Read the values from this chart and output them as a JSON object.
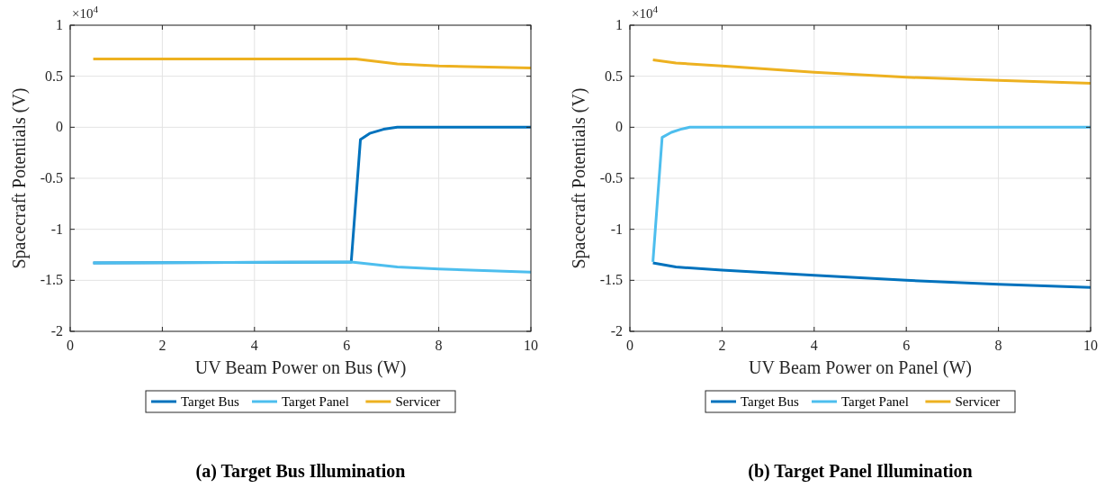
{
  "chart_data": [
    {
      "type": "line",
      "title": "(a) Target Bus Illumination",
      "xlabel": "UV Beam Power on Bus (W)",
      "ylabel": "Spacecraft Potentials (V)",
      "annotations": [
        "×10$^{4}$"
      ],
      "xlim": [
        0,
        10
      ],
      "xticks": [
        0,
        2,
        4,
        6,
        8,
        10
      ],
      "ylim": [
        -2,
        1
      ],
      "yticks": [
        -2,
        -1.5,
        -1,
        -0.5,
        0,
        0.5,
        1
      ],
      "grid": true,
      "legend": "bottom",
      "series": [
        {
          "name": "Target Bus",
          "color": "#0072bd",
          "x": [
            0.5,
            6.1,
            6.3,
            6.5,
            6.8,
            7.1,
            10
          ],
          "values": [
            -1.33,
            -1.32,
            -0.12,
            -0.06,
            -0.02,
            0,
            0
          ]
        },
        {
          "name": "Target Panel",
          "color": "#4dbeee",
          "x": [
            0.5,
            6.1,
            7.1,
            8,
            10
          ],
          "values": [
            -1.33,
            -1.32,
            -1.37,
            -1.39,
            -1.42
          ]
        },
        {
          "name": "Servicer",
          "color": "#edb120",
          "x": [
            0.5,
            6.2,
            7.1,
            8,
            10
          ],
          "values": [
            0.67,
            0.67,
            0.62,
            0.6,
            0.58
          ]
        }
      ]
    },
    {
      "type": "line",
      "title": "(b) Target Panel Illumination",
      "xlabel": "UV Beam Power on Panel (W)",
      "ylabel": "Spacecraft Potentials (V)",
      "annotations": [
        "×10$^{4}$"
      ],
      "xlim": [
        0,
        10
      ],
      "xticks": [
        0,
        2,
        4,
        6,
        8,
        10
      ],
      "ylim": [
        -2,
        1
      ],
      "yticks": [
        -2,
        -1.5,
        -1,
        -0.5,
        0,
        0.5,
        1
      ],
      "grid": true,
      "legend": "bottom",
      "series": [
        {
          "name": "Target Bus",
          "color": "#0072bd",
          "x": [
            0.5,
            1,
            2,
            4,
            6,
            8,
            10
          ],
          "values": [
            -1.33,
            -1.37,
            -1.4,
            -1.45,
            -1.5,
            -1.54,
            -1.57
          ]
        },
        {
          "name": "Target Panel",
          "color": "#4dbeee",
          "x": [
            0.5,
            0.7,
            0.9,
            1.1,
            1.3,
            10
          ],
          "values": [
            -1.32,
            -0.1,
            -0.05,
            -0.02,
            0,
            0
          ]
        },
        {
          "name": "Servicer",
          "color": "#edb120",
          "x": [
            0.5,
            1,
            2,
            4,
            6,
            8,
            10
          ],
          "values": [
            0.66,
            0.63,
            0.6,
            0.54,
            0.49,
            0.46,
            0.43
          ]
        }
      ]
    }
  ]
}
